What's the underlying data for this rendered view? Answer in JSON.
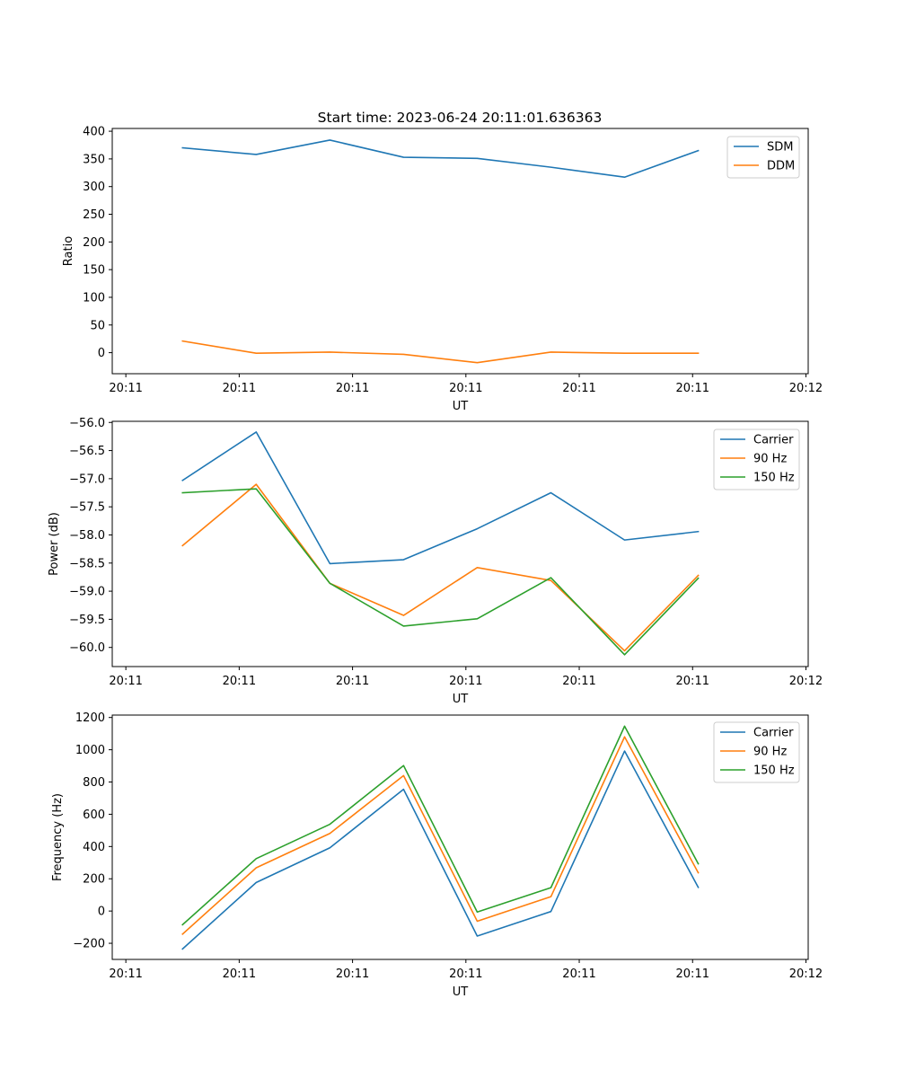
{
  "figure": {
    "title": "Start time: 2023-06-24 20:11:01.636363"
  },
  "colors": {
    "blue": "#1f77b4",
    "orange": "#ff7f0e",
    "green": "#2ca02c"
  },
  "chart_data": [
    {
      "type": "line",
      "title": "Start time: 2023-06-24 20:11:01.636363",
      "xlabel": "UT",
      "ylabel": "Ratio",
      "x_tick_labels": [
        "20:11",
        "20:11",
        "20:11",
        "20:11",
        "20:11",
        "20:11",
        "20:12"
      ],
      "x_ticks": [
        0,
        1,
        2,
        3,
        4,
        5,
        6
      ],
      "xlim": [
        -0.12,
        6.02
      ],
      "ylim": [
        -38,
        405
      ],
      "y_ticks": [
        0,
        50,
        100,
        150,
        200,
        250,
        300,
        350,
        400
      ],
      "legend_position": "upper right",
      "grid": false,
      "series": [
        {
          "name": "SDM",
          "color": "#1f77b4",
          "x": [
            0.5,
            1.15,
            1.8,
            2.45,
            3.1,
            3.75,
            4.4,
            5.05
          ],
          "y": [
            370,
            358,
            384,
            353,
            351,
            335,
            317,
            365
          ]
        },
        {
          "name": "DDM",
          "color": "#ff7f0e",
          "x": [
            0.5,
            1.15,
            1.8,
            2.45,
            3.1,
            3.75,
            4.4,
            5.05
          ],
          "y": [
            21,
            -1,
            1,
            -3,
            -18,
            1,
            -1,
            -1
          ]
        }
      ]
    },
    {
      "type": "line",
      "xlabel": "UT",
      "ylabel": "Power (dB)",
      "x_tick_labels": [
        "20:11",
        "20:11",
        "20:11",
        "20:11",
        "20:11",
        "20:11",
        "20:12"
      ],
      "x_ticks": [
        0,
        1,
        2,
        3,
        4,
        5,
        6
      ],
      "xlim": [
        -0.12,
        6.02
      ],
      "ylim": [
        -60.34,
        -55.98
      ],
      "y_ticks": [
        -56.0,
        -56.5,
        -57.0,
        -57.5,
        -58.0,
        -58.5,
        -59.0,
        -59.5,
        -60.0
      ],
      "y_tick_labels": [
        "−56.0",
        "−56.5",
        "−57.0",
        "−57.5",
        "−58.0",
        "−58.5",
        "−59.0",
        "−59.5",
        "−60.0"
      ],
      "legend_position": "upper right",
      "grid": false,
      "series": [
        {
          "name": "Carrier",
          "color": "#1f77b4",
          "x": [
            0.5,
            1.15,
            1.8,
            2.45,
            3.1,
            3.75,
            4.4,
            5.05
          ],
          "y": [
            -57.03,
            -56.17,
            -58.51,
            -58.44,
            -57.89,
            -57.25,
            -58.09,
            -57.94
          ]
        },
        {
          "name": "90 Hz",
          "color": "#ff7f0e",
          "x": [
            0.5,
            1.15,
            1.8,
            2.45,
            3.1,
            3.75,
            4.4,
            5.05
          ],
          "y": [
            -58.19,
            -57.1,
            -58.86,
            -59.43,
            -58.58,
            -58.81,
            -60.06,
            -58.72
          ]
        },
        {
          "name": "150 Hz",
          "color": "#2ca02c",
          "x": [
            0.5,
            1.15,
            1.8,
            2.45,
            3.1,
            3.75,
            4.4,
            5.05
          ],
          "y": [
            -57.25,
            -57.18,
            -58.86,
            -59.62,
            -59.49,
            -58.76,
            -60.13,
            -58.77
          ]
        }
      ]
    },
    {
      "type": "line",
      "xlabel": "UT",
      "ylabel": "Frequency (Hz)",
      "x_tick_labels": [
        "20:11",
        "20:11",
        "20:11",
        "20:11",
        "20:11",
        "20:11",
        "20:12"
      ],
      "x_ticks": [
        0,
        1,
        2,
        3,
        4,
        5,
        6
      ],
      "xlim": [
        -0.12,
        6.02
      ],
      "ylim": [
        -300,
        1215
      ],
      "y_ticks": [
        -200,
        0,
        200,
        400,
        600,
        800,
        1000,
        1200
      ],
      "y_tick_labels": [
        "−200",
        "0",
        "200",
        "400",
        "600",
        "800",
        "1000",
        "1200"
      ],
      "legend_position": "upper right",
      "grid": false,
      "series": [
        {
          "name": "Carrier",
          "color": "#1f77b4",
          "x": [
            0.5,
            1.15,
            1.8,
            2.45,
            3.1,
            3.75,
            4.4,
            5.05
          ],
          "y": [
            -235,
            177,
            392,
            755,
            -155,
            -3,
            992,
            147
          ]
        },
        {
          "name": "90 Hz",
          "color": "#ff7f0e",
          "x": [
            0.5,
            1.15,
            1.8,
            2.45,
            3.1,
            3.75,
            4.4,
            5.05
          ],
          "y": [
            -143,
            268,
            481,
            840,
            -63,
            89,
            1080,
            237
          ]
        },
        {
          "name": "150 Hz",
          "color": "#2ca02c",
          "x": [
            0.5,
            1.15,
            1.8,
            2.45,
            3.1,
            3.75,
            4.4,
            5.05
          ],
          "y": [
            -85,
            325,
            538,
            902,
            -6,
            145,
            1146,
            293
          ]
        }
      ]
    }
  ]
}
